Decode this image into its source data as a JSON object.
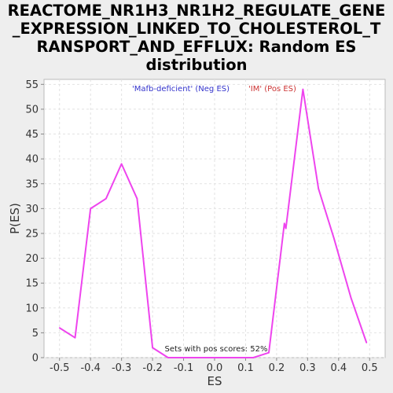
{
  "chart_data": {
    "type": "line",
    "title_lines": [
      "REACTOME_NR1H3_NR1H2_REGULATE_GENE",
      "_EXPRESSION_LINKED_TO_CHOLESTEROL_T",
      "RANSPORT_AND_EFFLUX: Random ES",
      "distribution"
    ],
    "xlabel": "ES",
    "ylabel": "P(ES)",
    "xlim": [
      -0.55,
      0.55
    ],
    "ylim": [
      0,
      56
    ],
    "xticks": [
      -0.5,
      -0.4,
      -0.3,
      -0.2,
      -0.1,
      0.0,
      0.1,
      0.2,
      0.3,
      0.4,
      0.5
    ],
    "xtick_labels": [
      "-0.5",
      "-0.4",
      "-0.3",
      "-0.2",
      "-0.1",
      "0.0",
      "0.1",
      "0.2",
      "0.3",
      "0.4",
      "0.5"
    ],
    "yticks": [
      0,
      5,
      10,
      15,
      20,
      25,
      30,
      35,
      40,
      45,
      50,
      55
    ],
    "ytick_labels": [
      "0",
      "5",
      "10",
      "15",
      "20",
      "25",
      "30",
      "35",
      "40",
      "45",
      "50",
      "55"
    ],
    "grid": true,
    "line_color": "#ee44ee",
    "series": [
      {
        "x": [
          -0.5,
          -0.45,
          -0.4,
          -0.35,
          -0.3,
          -0.25,
          -0.2,
          -0.15,
          -0.1,
          -0.05,
          0.0,
          0.05,
          0.1,
          0.125,
          0.175,
          0.225,
          0.23,
          0.285,
          0.335,
          0.385,
          0.44,
          0.49
        ],
        "values": [
          6,
          4,
          30,
          32,
          39,
          32,
          2,
          0,
          0,
          0,
          0,
          0,
          0,
          0,
          1,
          27,
          26,
          54,
          34,
          24,
          12,
          3
        ]
      }
    ],
    "legend": [
      {
        "label": "'Mafb-deficient' (Neg ES)",
        "color": "#3333cc"
      },
      {
        "label": "'IM' (Pos ES)",
        "color": "#cc3333"
      }
    ],
    "annotation": "Sets with pos scores: 52%"
  }
}
